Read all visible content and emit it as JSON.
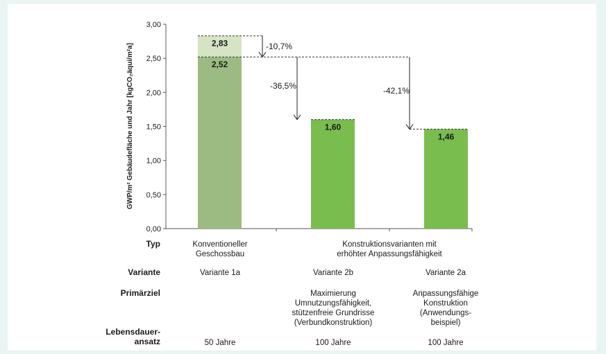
{
  "chart_data": {
    "type": "bar",
    "ylabel": "GWP/m² Gebäudefläche und Jahr  [kgCO₂äqui/m²a]",
    "ylim": [
      0,
      3
    ],
    "yticks": [
      "0,00",
      "0,50",
      "1,00",
      "1,50",
      "2,00",
      "2,50",
      "3,00"
    ],
    "ytick_values": [
      0,
      0.5,
      1,
      1.5,
      2,
      2.5,
      3
    ],
    "categories": [
      "Variante 1a",
      "Variante 2b",
      "Variante 2a"
    ],
    "values": [
      2.52,
      1.6,
      1.46
    ],
    "value_labels": [
      "2,52",
      "1,60",
      "1,46"
    ],
    "stacked_top": {
      "value": 2.83,
      "label": "2,83"
    },
    "reductions": [
      "-10,7%",
      "-36,5%",
      "-42,1%"
    ],
    "colors": {
      "bar_base_1": "#9bbb82",
      "bar_top_1": "#d5e4c5",
      "bar": "#79bd4f",
      "axis": "#555555"
    }
  },
  "table": {
    "rows": [
      {
        "header": "Typ",
        "cells": [
          "Konventioneller\nGeschossbau",
          "Konstruktionsvarianten mit\nerhöhter Anpassungsfähigkeit"
        ]
      },
      {
        "header": "Variante",
        "cells": [
          "Variante 1a",
          "Variante 2b",
          "Variante 2a"
        ]
      },
      {
        "header": "Primärziel",
        "cells": [
          "",
          "Maximierung\nUmnutzungsfähigkeit,\nstützenfreie Grundrisse\n(Verbundkonstruktion)",
          "Anpassungsfähige\nKonstruktion\n(Anwendungs-\nbeispiel)"
        ]
      },
      {
        "header": "Lebensdauer-\nansatz",
        "cells": [
          "50 Jahre",
          "100 Jahre",
          "100 Jahre"
        ]
      }
    ]
  }
}
